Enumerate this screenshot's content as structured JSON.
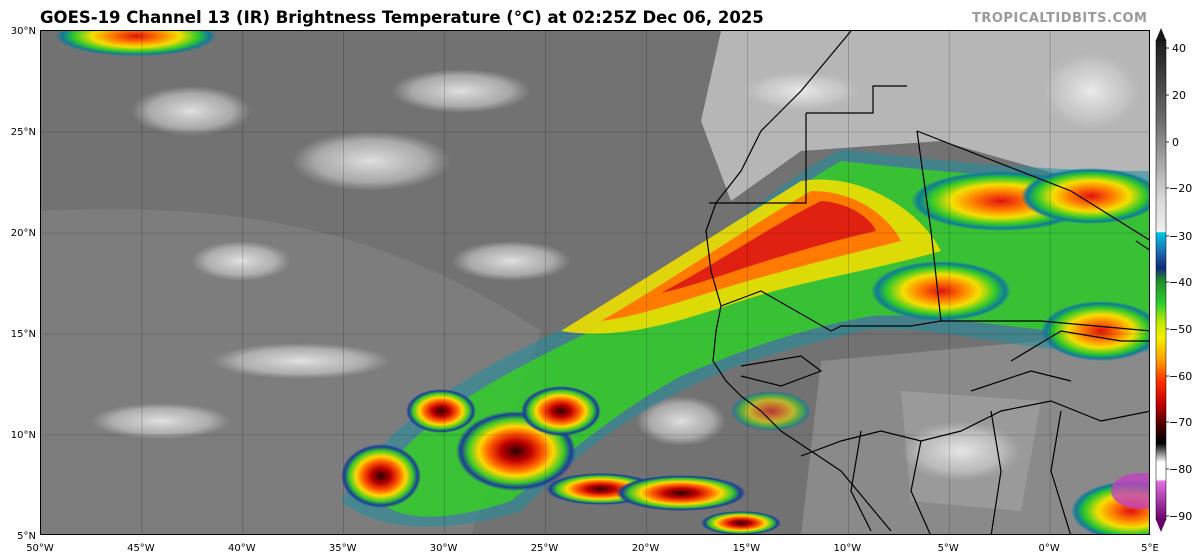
{
  "header": {
    "title": "GOES-19 Channel 13 (IR) Brightness Temperature (°C) at 02:25Z Dec 06, 2025",
    "credit": "TROPICALTIDBITS.COM"
  },
  "map": {
    "lon_labels": [
      "50°W",
      "45°W",
      "40°W",
      "35°W",
      "30°W",
      "25°W",
      "20°W",
      "15°W",
      "10°W",
      "5°W",
      "0°W",
      "5°E"
    ],
    "lat_labels": [
      "30°N",
      "25°N",
      "20°N",
      "15°N",
      "10°N",
      "5°N"
    ],
    "lon_range": [
      -50,
      5
    ],
    "lat_range": [
      5,
      30
    ]
  },
  "colorbar": {
    "ticks": [
      "40",
      "20",
      "0",
      "−20",
      "−30",
      "−40",
      "−50",
      "−60",
      "−70",
      "−80",
      "−90"
    ],
    "range_c": [
      -90,
      40
    ],
    "colors": {
      "warm_gray_top": "#1a1a1a",
      "light_gray": "#e8e8e8",
      "cyan": "#00c8e8",
      "dark_blue": "#102a7a",
      "green": "#2ed12e",
      "yellow": "#f0f000",
      "orange": "#ff8800",
      "red": "#e01010",
      "dark_red": "#600000",
      "black": "#000000",
      "white": "#ffffff",
      "magenta": "#d040d0",
      "purple": "#6a006a"
    }
  }
}
